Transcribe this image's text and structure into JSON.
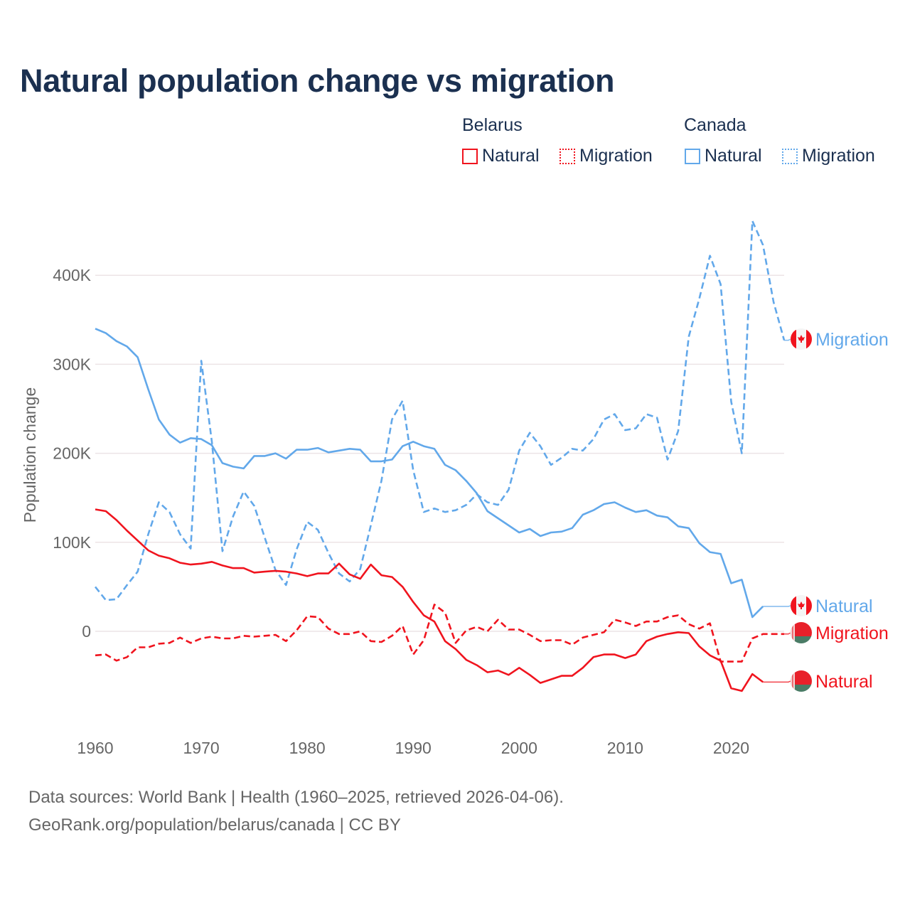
{
  "title": "Natural population change vs migration",
  "legend": {
    "groups": [
      {
        "name": "Belarus",
        "items": [
          {
            "label": "Natural",
            "style": "solid"
          },
          {
            "label": "Migration",
            "style": "dotted"
          }
        ],
        "color": "#f0141e"
      },
      {
        "name": "Canada",
        "items": [
          {
            "label": "Natural",
            "style": "solid"
          },
          {
            "label": "Migration",
            "style": "dotted"
          }
        ],
        "color": "#62a8ea"
      }
    ]
  },
  "footer": {
    "line1": "Data sources: World Bank | Health (1960–2025, retrieved 2026-04-06).",
    "line2": "GeoRank.org/population/belarus/canada | CC BY"
  },
  "chart_data": {
    "type": "line",
    "title": "Natural population change vs migration",
    "xlabel": "",
    "ylabel": "Population change",
    "xlim": [
      1960,
      2025
    ],
    "ylim": [
      -80000,
      470000
    ],
    "grid": true,
    "legend_position": "top-right",
    "x_ticks": [
      1960,
      1970,
      1980,
      1990,
      2000,
      2010,
      2020
    ],
    "x_tick_labels": [
      "1960",
      "1970",
      "1980",
      "1990",
      "2000",
      "2010",
      "2020"
    ],
    "y_ticks": [
      0,
      100000,
      200000,
      300000,
      400000
    ],
    "y_tick_labels": [
      "0",
      "100K",
      "200K",
      "300K",
      "400K"
    ],
    "series": [
      {
        "name": "Canada Migration",
        "country": "Canada",
        "kind": "Migration",
        "end_label": "Migration",
        "color": "#62a8ea",
        "dash": true,
        "start": 1960,
        "values": [
          50,
          35,
          36,
          52,
          67,
          109,
          145,
          134,
          109,
          93,
          304,
          213,
          90,
          129,
          157,
          141,
          105,
          69,
          52,
          92,
          123,
          114,
          88,
          65,
          56,
          70,
          119,
          169,
          238,
          259,
          181,
          134,
          138,
          134,
          136,
          142,
          154,
          145,
          142,
          159,
          203,
          223,
          208,
          187,
          195,
          205,
          203,
          216,
          238,
          244,
          226,
          228,
          244,
          240,
          193,
          225,
          331,
          374,
          422,
          390,
          258,
          200,
          461,
          434,
          370,
          327
        ]
      },
      {
        "name": "Canada Natural",
        "country": "Canada",
        "kind": "Natural",
        "end_label": "Natural",
        "color": "#62a8ea",
        "dash": false,
        "start": 1960,
        "values": [
          340,
          335,
          326,
          320,
          308,
          272,
          238,
          221,
          212,
          217,
          216,
          209,
          189,
          185,
          183,
          197,
          197,
          200,
          194,
          204,
          204,
          206,
          201,
          203,
          205,
          204,
          191,
          191,
          193,
          208,
          213,
          208,
          205,
          187,
          181,
          169,
          155,
          135,
          127,
          119,
          111,
          115,
          107,
          111,
          112,
          116,
          131,
          136,
          143,
          145,
          139,
          134,
          136,
          130,
          128,
          118,
          116,
          99,
          89,
          87,
          54,
          58,
          16,
          28
        ]
      },
      {
        "name": "Belarus Migration",
        "country": "Belarus",
        "kind": "Migration",
        "end_label": "Migration",
        "color": "#f0141e",
        "dash": true,
        "start": 1960,
        "values": [
          -27,
          -26,
          -33,
          -29,
          -18,
          -18,
          -14,
          -13,
          -7,
          -13,
          -8,
          -6,
          -8,
          -8,
          -5,
          -6,
          -5,
          -4,
          -11,
          1,
          17,
          16,
          3,
          -3,
          -3,
          0,
          -11,
          -12,
          -5,
          6,
          -26,
          -10,
          30,
          21,
          -13,
          1,
          5,
          0,
          13,
          2,
          2,
          -4,
          -11,
          -10,
          -10,
          -15,
          -7,
          -4,
          -1,
          13,
          10,
          6,
          11,
          11,
          16,
          18,
          8,
          3,
          9,
          -34,
          -34,
          -34,
          -8,
          -3,
          -3,
          -3
        ]
      },
      {
        "name": "Belarus Natural",
        "country": "Belarus",
        "kind": "Natural",
        "end_label": "Natural",
        "color": "#f0141e",
        "dash": false,
        "start": 1960,
        "values": [
          137,
          135,
          125,
          113,
          102,
          91,
          85,
          82,
          77,
          75,
          76,
          78,
          74,
          71,
          71,
          66,
          67,
          68,
          67,
          65,
          62,
          65,
          65,
          76,
          64,
          59,
          75,
          63,
          61,
          50,
          33,
          18,
          11,
          -11,
          -20,
          -32,
          -38,
          -46,
          -44,
          -49,
          -41,
          -49,
          -58,
          -54,
          -50,
          -50,
          -41,
          -29,
          -26,
          -26,
          -30,
          -26,
          -11,
          -6,
          -3,
          -1,
          -2,
          -17,
          -27,
          -33,
          -64,
          -67,
          -48,
          -57
        ]
      }
    ],
    "value_unit": "thousands"
  }
}
